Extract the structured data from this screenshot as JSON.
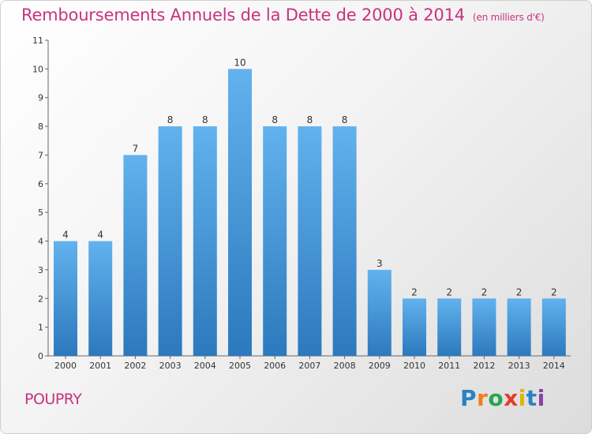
{
  "title": "Remboursements Annuels de la Dette de 2000 à 2014",
  "subtitle": "(en milliers d'€)",
  "commune": "POUPRY",
  "logo": {
    "letters": [
      "P",
      "r",
      "o",
      "x",
      "i",
      "t",
      "i"
    ],
    "colors": [
      "#2a82c4",
      "#f07d1a",
      "#2aa54b",
      "#e63a2e",
      "#e0b600",
      "#2a82c4",
      "#8a3fb0"
    ]
  },
  "chart_data": {
    "type": "bar",
    "categories": [
      "2000",
      "2001",
      "2002",
      "2003",
      "2004",
      "2005",
      "2006",
      "2007",
      "2008",
      "2009",
      "2010",
      "2011",
      "2012",
      "2013",
      "2014"
    ],
    "values": [
      4,
      4,
      7,
      8,
      8,
      10,
      8,
      8,
      8,
      3,
      2,
      2,
      2,
      2,
      2
    ],
    "yticks": [
      0,
      1,
      2,
      3,
      4,
      5,
      6,
      7,
      8,
      9,
      10,
      11
    ],
    "ylim": [
      0,
      11
    ],
    "grid": false,
    "bar_color_top": "#62b2ee",
    "bar_color_bottom": "#2c79bd"
  }
}
